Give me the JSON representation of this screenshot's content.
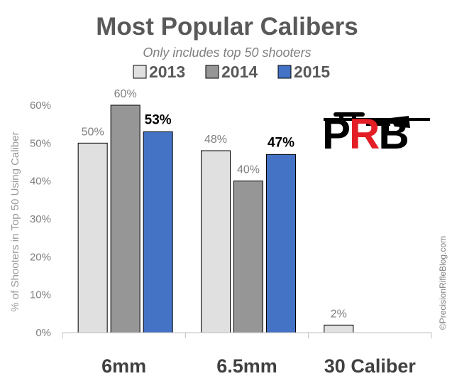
{
  "chart_data": {
    "type": "bar",
    "title": "Most Popular Calibers",
    "subtitle": "Only includes top 50 shooters",
    "ylabel": "% of Shooters in Top 50 Using Caliber",
    "xlabel": "",
    "ylim": [
      0,
      60
    ],
    "yticks": [
      "0%",
      "10%",
      "20%",
      "30%",
      "40%",
      "50%",
      "60%"
    ],
    "categories": [
      "6mm",
      "6.5mm",
      "30 Caliber"
    ],
    "series": [
      {
        "name": "2013",
        "color": "#e0e0e0",
        "values": [
          50,
          48,
          2
        ],
        "labels": [
          "50%",
          "48%",
          "2%"
        ]
      },
      {
        "name": "2014",
        "color": "#969696",
        "values": [
          60,
          40,
          null
        ],
        "labels": [
          "60%",
          "40%",
          ""
        ]
      },
      {
        "name": "2015",
        "color": "#4472c4",
        "values": [
          53,
          47,
          null
        ],
        "labels": [
          "53%",
          "47%",
          ""
        ]
      }
    ],
    "legend_position": "top",
    "grid": false
  },
  "logo": {
    "text": "PRB",
    "colors": [
      "#000000",
      "#e31e24"
    ]
  },
  "copyright": "©PrecisionRifleBlog.com"
}
